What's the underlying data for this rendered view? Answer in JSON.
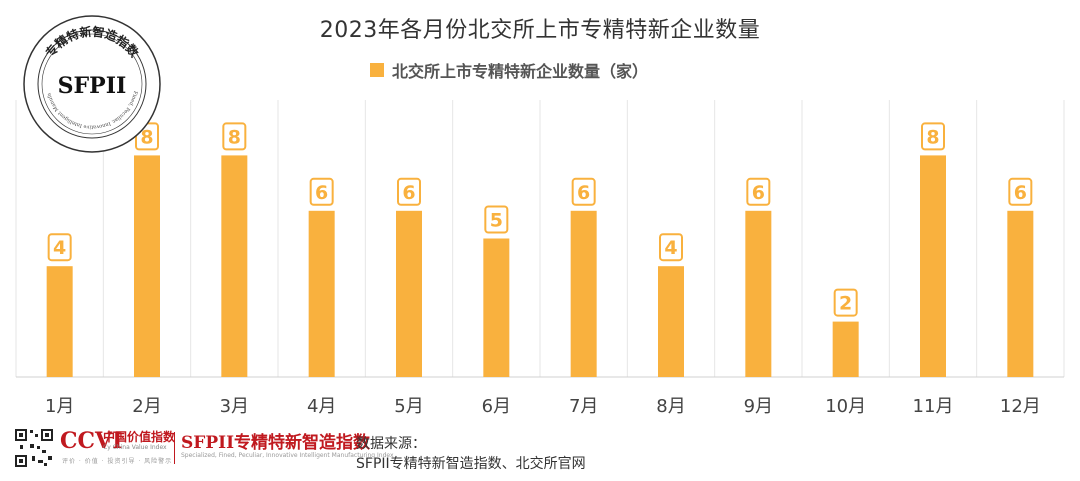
{
  "chart_data": {
    "type": "bar",
    "title": "2023年各月份北交所上市专精特新企业数量",
    "categories": [
      "1月",
      "2月",
      "3月",
      "4月",
      "5月",
      "6月",
      "7月",
      "8月",
      "9月",
      "10月",
      "11月",
      "12月"
    ],
    "series": [
      {
        "name": "北交所上市专精特新企业数量（家）",
        "values": [
          4,
          8,
          8,
          6,
          6,
          5,
          6,
          4,
          6,
          2,
          8,
          6
        ]
      }
    ],
    "ylim": [
      0,
      10
    ],
    "grid": "vertical",
    "legend_position": "top",
    "data_labels": true,
    "bar_color": "#F9B13E",
    "label_color": "#F9B13E"
  },
  "seal": {
    "center_text": "SFPII",
    "ring_text_cn": "专精特新智造指数",
    "ring_text_en": "Specialized, Fined, Peculiar, Innovative Intelligent Manufacturing Index"
  },
  "footer": {
    "ccvi_logo": "CCVI",
    "ccvi_name": "中国价值指数",
    "ccvi_en": "Cy China Value Index",
    "ccvi_sub": "评价 · 价值 · 投资引导 · 风险警示",
    "sfpii_logo": "SFPII专精特新智造指数",
    "sfpii_en": "Specialized, Fined, Peculiar, Innovative Intelligent Manufacturing Index",
    "source_label": "数据来源：",
    "source_text": "SFPII专精特新智造指数、北交所官网"
  },
  "colors": {
    "accent": "#F9B13E",
    "brand_red": "#c0191f",
    "grid": "#e6e6e6"
  }
}
